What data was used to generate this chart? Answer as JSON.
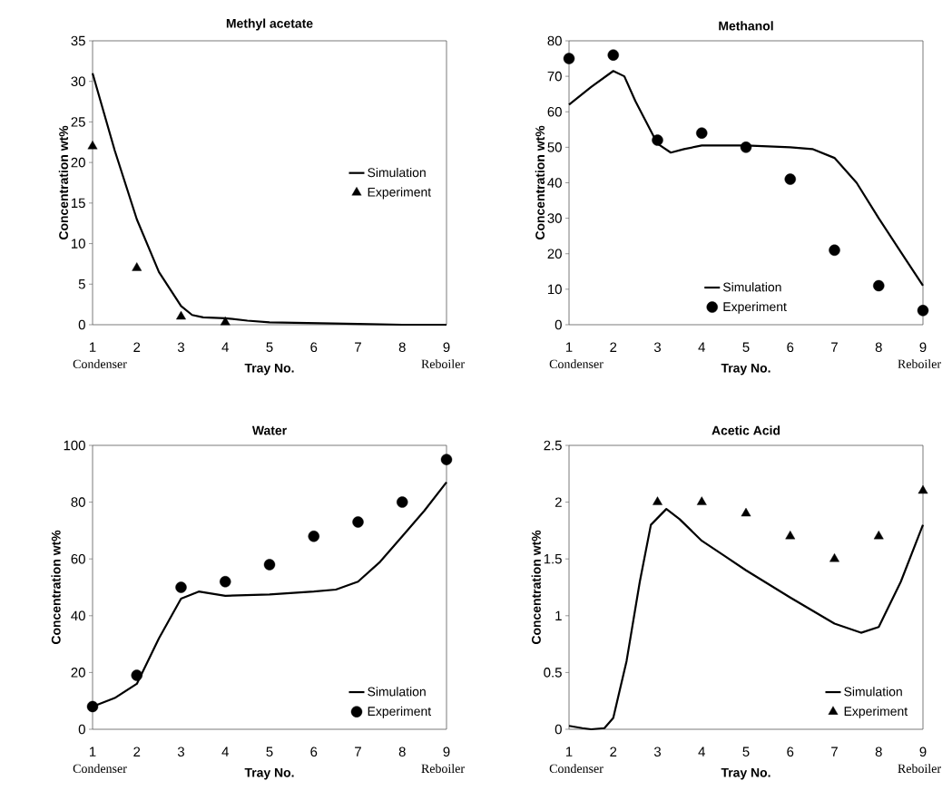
{
  "chart_data": [
    {
      "type": "line",
      "title": "Methyl acetate",
      "xlabel": "Tray No.",
      "ylabel": "Concentration wt%",
      "xlim": [
        1,
        9
      ],
      "xticks": [
        1,
        2,
        3,
        4,
        5,
        6,
        7,
        8,
        9
      ],
      "ylim": [
        0,
        35
      ],
      "yticks": [
        0,
        5,
        10,
        15,
        20,
        25,
        30,
        35
      ],
      "legend": "right",
      "annotations": [
        "Condenser",
        "Reboiler"
      ],
      "series": [
        {
          "name": "Simulation",
          "type": "line",
          "color": "#000000",
          "marker": "none",
          "x": [
            1,
            1.5,
            2,
            2.5,
            3,
            3.25,
            3.5,
            4,
            4.5,
            5,
            6,
            7,
            8,
            9
          ],
          "values": [
            31,
            21.5,
            13,
            6.5,
            2.3,
            1.2,
            0.9,
            0.8,
            0.5,
            0.3,
            0.2,
            0.1,
            0,
            0
          ]
        },
        {
          "name": "Experiment",
          "type": "scatter",
          "color": "#000000",
          "marker": "triangle",
          "x": [
            1,
            2,
            3,
            4
          ],
          "values": [
            22,
            7,
            1,
            0.3
          ]
        }
      ]
    },
    {
      "type": "line",
      "title": "Methanol",
      "xlabel": "Tray No.",
      "ylabel": "Concentration wt%",
      "xlim": [
        1,
        9
      ],
      "xticks": [
        1,
        2,
        3,
        4,
        5,
        6,
        7,
        8,
        9
      ],
      "ylim": [
        0,
        80
      ],
      "yticks": [
        0,
        10,
        20,
        30,
        40,
        50,
        60,
        70,
        80
      ],
      "legend": "bottom",
      "annotations": [
        "Condenser",
        "Reboiler"
      ],
      "series": [
        {
          "name": "Simulation",
          "type": "line",
          "color": "#000000",
          "marker": "none",
          "x": [
            1,
            1.5,
            2,
            2.25,
            2.5,
            3,
            3.3,
            3.6,
            4,
            5,
            6,
            6.5,
            7,
            7.5,
            8,
            8.5,
            9
          ],
          "values": [
            62,
            67,
            71.5,
            70,
            63,
            51,
            48.5,
            49.5,
            50.5,
            50.5,
            50,
            49.5,
            47,
            40,
            30,
            20.5,
            11
          ]
        },
        {
          "name": "Experiment",
          "type": "scatter",
          "color": "#000000",
          "marker": "circle",
          "x": [
            1,
            2,
            3,
            4,
            5,
            6,
            7,
            8,
            9
          ],
          "values": [
            75,
            76,
            52,
            54,
            50,
            41,
            21,
            11,
            4
          ]
        }
      ]
    },
    {
      "type": "line",
      "title": "Water",
      "xlabel": "Tray No.",
      "ylabel": "Concentration wt%",
      "xlim": [
        1,
        9
      ],
      "xticks": [
        1,
        2,
        3,
        4,
        5,
        6,
        7,
        8,
        9
      ],
      "ylim": [
        0,
        100
      ],
      "yticks": [
        0,
        20,
        40,
        60,
        80,
        100
      ],
      "legend": "bottom right",
      "annotations": [
        "Condenser",
        "Reboiler"
      ],
      "series": [
        {
          "name": "Simulation",
          "type": "line",
          "color": "#000000",
          "marker": "none",
          "x": [
            1,
            1.5,
            2,
            2.5,
            3,
            3.4,
            4,
            5,
            6,
            6.5,
            7,
            7.5,
            8,
            8.5,
            9
          ],
          "values": [
            8,
            11,
            16,
            32,
            46,
            48.5,
            47,
            47.5,
            48.5,
            49.2,
            52,
            59,
            68,
            77,
            87
          ]
        },
        {
          "name": "Experiment",
          "type": "scatter",
          "color": "#000000",
          "marker": "circle",
          "x": [
            1,
            2,
            3,
            4,
            5,
            6,
            7,
            8,
            9
          ],
          "values": [
            8,
            19,
            50,
            52,
            58,
            68,
            73,
            80,
            95
          ]
        }
      ]
    },
    {
      "type": "line",
      "title": "Acetic Acid",
      "xlabel": "Tray No.",
      "ylabel": "Concentration wt%",
      "xlim": [
        1,
        9
      ],
      "xticks": [
        1,
        2,
        3,
        4,
        5,
        6,
        7,
        8,
        9
      ],
      "ylim": [
        0,
        2.5
      ],
      "yticks": [
        0,
        0.5,
        1,
        1.5,
        2,
        2.5
      ],
      "legend": "bottom right",
      "annotations": [
        "Condenser",
        "Reboiler"
      ],
      "series": [
        {
          "name": "Simulation",
          "type": "line",
          "color": "#000000",
          "marker": "none",
          "x": [
            1,
            1.3,
            1.5,
            1.8,
            2,
            2.3,
            2.6,
            2.85,
            3.2,
            3.5,
            4,
            4.5,
            5,
            6,
            7,
            7.6,
            8,
            8.5,
            9
          ],
          "values": [
            0.03,
            0.01,
            0,
            0.01,
            0.1,
            0.6,
            1.3,
            1.8,
            1.94,
            1.85,
            1.66,
            1.53,
            1.4,
            1.16,
            0.93,
            0.85,
            0.9,
            1.3,
            1.8
          ]
        },
        {
          "name": "Experiment",
          "type": "scatter",
          "color": "#000000",
          "marker": "triangle",
          "x": [
            3,
            4,
            5,
            6,
            7,
            8,
            9
          ],
          "values": [
            2,
            2,
            1.9,
            1.7,
            1.5,
            1.7,
            2.1
          ]
        }
      ]
    }
  ]
}
